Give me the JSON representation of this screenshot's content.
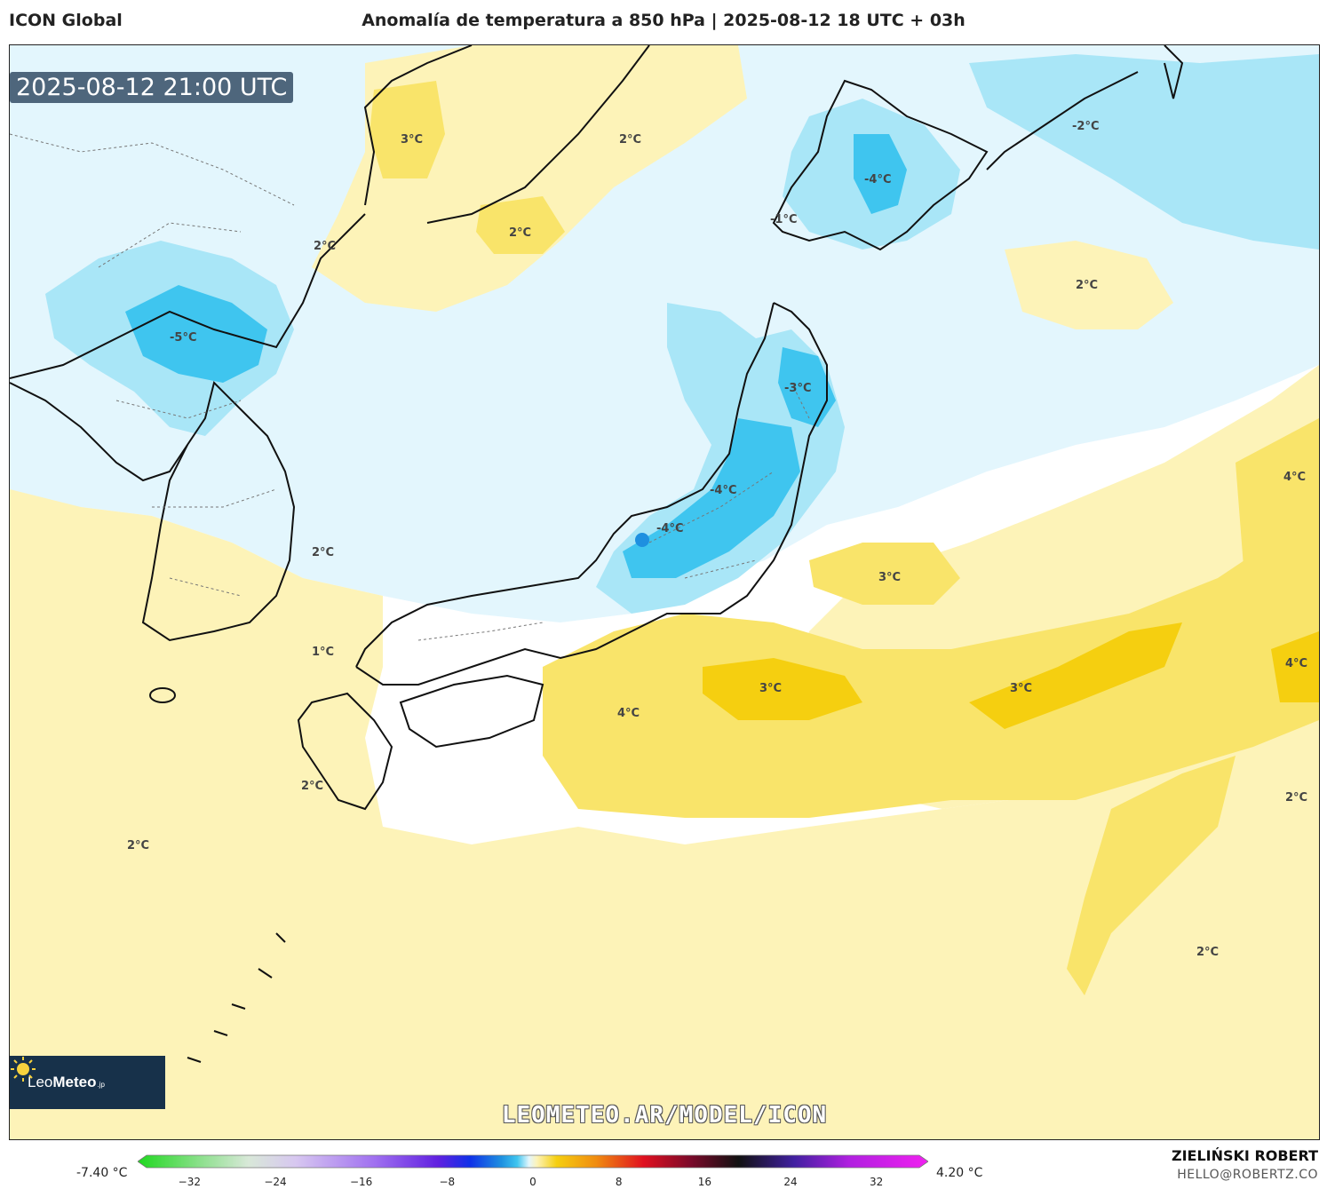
{
  "header": {
    "model": "ICON Global",
    "title": "Anomalía de temperatura a 850 hPa | 2025-08-12 18 UTC + 03h"
  },
  "map": {
    "valid_time": "2025-08-12 21:00 UTC",
    "labels": [
      {
        "id": "l1",
        "text": "3°C"
      },
      {
        "id": "l2",
        "text": "2°C"
      },
      {
        "id": "l3",
        "text": "2°C"
      },
      {
        "id": "l4",
        "text": "2°C"
      },
      {
        "id": "l5",
        "text": "-5°C"
      },
      {
        "id": "l6",
        "text": "-4°C"
      },
      {
        "id": "l7",
        "text": "-1°C"
      },
      {
        "id": "l8",
        "text": "-2°C"
      },
      {
        "id": "l9",
        "text": "2°C"
      },
      {
        "id": "l10",
        "text": "-3°C"
      },
      {
        "id": "l11",
        "text": "-4°C"
      },
      {
        "id": "l12",
        "text": "-4°C"
      },
      {
        "id": "l13",
        "text": "4°C"
      },
      {
        "id": "l14",
        "text": "2°C"
      },
      {
        "id": "l15",
        "text": "3°C"
      },
      {
        "id": "l16",
        "text": "1°C"
      },
      {
        "id": "l17",
        "text": "4°C"
      },
      {
        "id": "l18",
        "text": "3°C"
      },
      {
        "id": "l19",
        "text": "3°C"
      },
      {
        "id": "l20",
        "text": "4°C"
      },
      {
        "id": "l21",
        "text": "2°C"
      },
      {
        "id": "l22",
        "text": "2°C"
      },
      {
        "id": "l23",
        "text": "2°C"
      },
      {
        "id": "l24",
        "text": "2°C"
      }
    ],
    "colors": {
      "cold_light": "#e3f6fd",
      "cold_mid": "#a9e6f7",
      "cold_strong": "#3fc5ef",
      "cold_core": "#1e90e0",
      "warm_light": "#fdf3b8",
      "warm_mid": "#f9e46a",
      "warm_strong": "#f5cf10"
    }
  },
  "branding": {
    "logo_main": "Leo",
    "logo_bold": "Meteo",
    "logo_suffix": ".jp",
    "watermark": "LEOMETEO.AR/MODEL/ICON"
  },
  "legend": {
    "min_label": "-7.40 °C",
    "max_label": "4.20 °C",
    "ticks": [
      {
        "value": -32,
        "label": "−32"
      },
      {
        "value": -24,
        "label": "−24"
      },
      {
        "value": -16,
        "label": "−16"
      },
      {
        "value": -8,
        "label": "−8"
      },
      {
        "value": 0,
        "label": "0"
      },
      {
        "value": 8,
        "label": "8"
      },
      {
        "value": 16,
        "label": "16"
      },
      {
        "value": 24,
        "label": "24"
      },
      {
        "value": 32,
        "label": "32"
      }
    ],
    "range": [
      -36,
      36
    ]
  },
  "footer": {
    "author": "ZIELIŃSKI ROBERT",
    "email": "HELLO@ROBERTZ.CO"
  }
}
